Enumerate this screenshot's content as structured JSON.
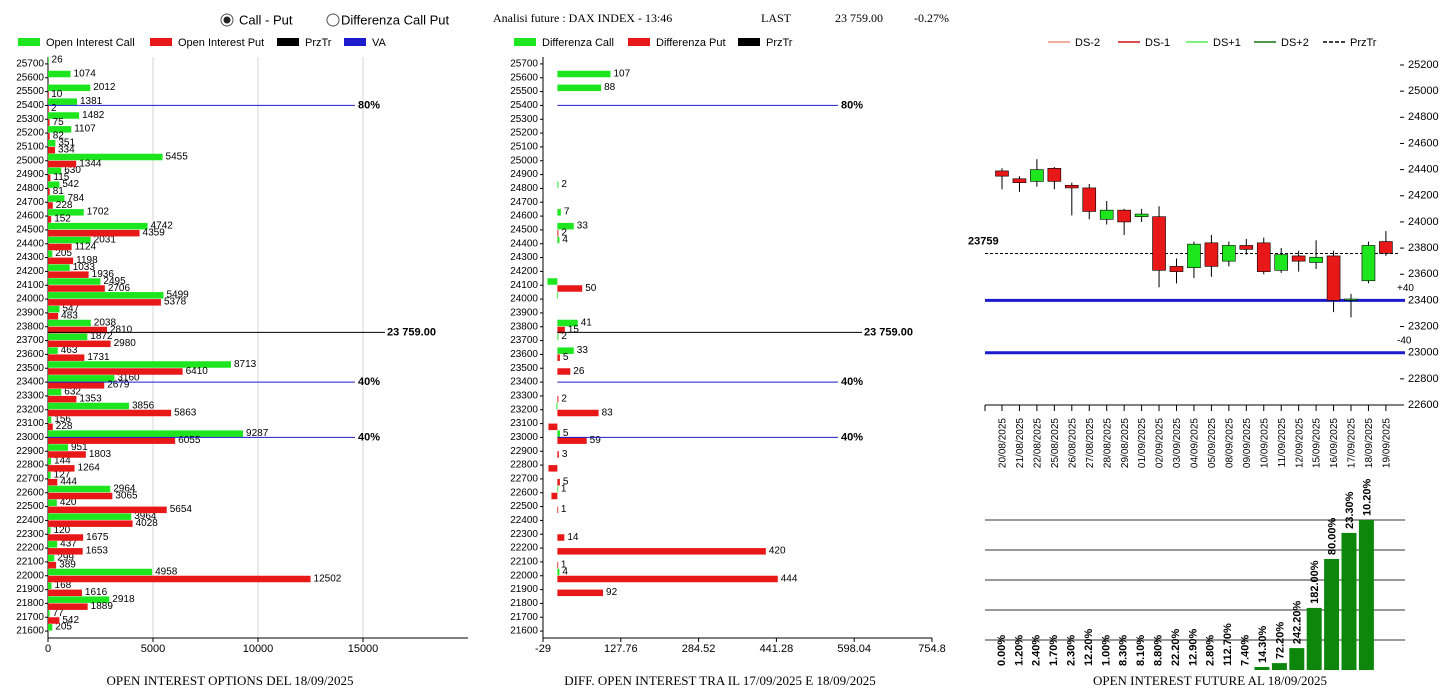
{
  "header": {
    "options": [
      "Call - Put",
      "Differenza Call Put"
    ],
    "selected": 0,
    "title": "Analisi future : DAX INDEX - 13:46",
    "last_label": "LAST",
    "last_value": "23 759.00",
    "change": "-0.27%"
  },
  "chart_data": [
    {
      "type": "hbar",
      "title": "OPEN INTEREST OPTIONS DEL 18/09/2025",
      "categories": [
        25700,
        25600,
        25500,
        25400,
        25300,
        25200,
        25100,
        25000,
        24900,
        24800,
        24700,
        24600,
        24500,
        24400,
        24300,
        24200,
        24100,
        24000,
        23900,
        23800,
        23700,
        23600,
        23500,
        23400,
        23300,
        23200,
        23100,
        23000,
        22900,
        22800,
        22700,
        22600,
        22500,
        22400,
        22300,
        22200,
        22100,
        22000,
        21900,
        21800,
        21700,
        21600
      ],
      "ylim": [
        21550,
        25750
      ],
      "xlim": [
        0,
        20000
      ],
      "xticks": [
        0,
        5000,
        10000,
        15000
      ],
      "grid": true,
      "series": [
        {
          "name": "Open Interest Call",
          "color": "#1ee61e",
          "values": [
            26,
            1074,
            2012,
            1381,
            1482,
            1107,
            351,
            5455,
            630,
            542,
            784,
            1702,
            4742,
            2031,
            205,
            1033,
            2495,
            5499,
            547,
            2038,
            1872,
            463,
            8713,
            3160,
            632,
            3856,
            156,
            9287,
            951,
            144,
            127,
            2964,
            420,
            3964,
            120,
            437,
            299,
            4958,
            168,
            2918,
            77,
            205
          ]
        },
        {
          "name": "Open Interest Put",
          "color": "#e81818",
          "values": [
            null,
            null,
            10,
            2,
            75,
            82,
            334,
            1344,
            115,
            81,
            228,
            152,
            4359,
            1124,
            1198,
            1936,
            2706,
            5378,
            483,
            2810,
            2980,
            1731,
            6410,
            2679,
            1353,
            5863,
            228,
            6055,
            1803,
            1264,
            444,
            3065,
            5654,
            4028,
            1675,
            1653,
            389,
            12502,
            1616,
            1889,
            542,
            null
          ]
        }
      ],
      "przTr": {
        "name": "PrzTr",
        "color": "#000000",
        "value": 23759,
        "label": "23 759.00"
      },
      "va": {
        "name": "VA",
        "color": "#1c1ccc",
        "levels": [
          {
            "value": 25400,
            "label": "80%"
          },
          {
            "value": 23400,
            "label": "40%"
          },
          {
            "value": 23000,
            "label": "40%"
          }
        ]
      }
    },
    {
      "type": "hbar",
      "title": "DIFF. OPEN INTEREST TRA IL 17/09/2025 E 18/09/2025",
      "categories": [
        25700,
        25600,
        25500,
        25400,
        25300,
        25200,
        25100,
        25000,
        24900,
        24800,
        24700,
        24600,
        24500,
        24400,
        24300,
        24200,
        24100,
        24000,
        23900,
        23800,
        23700,
        23600,
        23500,
        23400,
        23300,
        23200,
        23100,
        23000,
        22900,
        22800,
        22700,
        22600,
        22500,
        22400,
        22300,
        22200,
        22100,
        22000,
        21900,
        21800,
        21700,
        21600
      ],
      "ylim": [
        21550,
        25750
      ],
      "xlim": [
        -29,
        754.8
      ],
      "xticks": [
        -29,
        127.76,
        284.52,
        441.28,
        598.04,
        754.8
      ],
      "grid": false,
      "negative_labels": false,
      "series": [
        {
          "name": "Differenza Call",
          "color": "#1ee61e",
          "values": [
            null,
            107,
            88,
            null,
            null,
            null,
            null,
            null,
            null,
            2,
            null,
            7,
            33,
            4,
            null,
            null,
            -20,
            -1,
            null,
            41,
            2,
            33,
            null,
            null,
            null,
            -2,
            null,
            5,
            null,
            null,
            null,
            1,
            null,
            null,
            null,
            null,
            null,
            4,
            null,
            null,
            null,
            null
          ]
        },
        {
          "name": "Differenza Put",
          "color": "#e81818",
          "values": [
            null,
            null,
            null,
            null,
            null,
            null,
            null,
            null,
            null,
            null,
            null,
            null,
            2,
            null,
            null,
            null,
            50,
            null,
            null,
            15,
            null,
            5,
            26,
            null,
            2,
            83,
            -18,
            59,
            3,
            -18,
            5,
            -12,
            1,
            null,
            14,
            420,
            1,
            444,
            92,
            null,
            null,
            null
          ]
        }
      ],
      "przTr": {
        "name": "PrzTr",
        "color": "#000000",
        "value": 23759,
        "label": "23 759.00"
      },
      "va": {
        "color": "#1c1ccc",
        "levels": [
          {
            "value": 25400,
            "label": "80%"
          },
          {
            "value": 23400,
            "label": "40%"
          },
          {
            "value": 23000,
            "label": "40%"
          }
        ]
      }
    },
    {
      "type": "candlestick",
      "x": [
        "20/08/2025",
        "21/08/2025",
        "22/08/2025",
        "25/08/2025",
        "26/08/2025",
        "27/08/2025",
        "28/08/2025",
        "29/08/2025",
        "01/09/2025",
        "02/09/2025",
        "03/09/2025",
        "04/09/2025",
        "05/09/2025",
        "08/09/2025",
        "09/09/2025",
        "10/09/2025",
        "11/09/2025",
        "12/09/2025",
        "15/09/2025",
        "16/09/2025",
        "17/09/2025",
        "18/09/2025",
        "19/09/2025"
      ],
      "open": [
        24390,
        24330,
        24310,
        24410,
        24280,
        24260,
        24020,
        24090,
        24040,
        24040,
        23660,
        23650,
        23840,
        23700,
        23820,
        23840,
        23630,
        23740,
        23690,
        23740,
        23400,
        23550,
        23850
      ],
      "high": [
        24410,
        24350,
        24480,
        24420,
        24300,
        24290,
        24160,
        24100,
        24100,
        24120,
        23720,
        23850,
        23900,
        23850,
        23870,
        23880,
        23800,
        23780,
        23860,
        23780,
        23450,
        23850,
        23930
      ],
      "low": [
        24250,
        24230,
        24270,
        24250,
        24050,
        24020,
        23980,
        23900,
        24000,
        23500,
        23530,
        23570,
        23580,
        23660,
        23750,
        23600,
        23610,
        23620,
        23640,
        23310,
        23270,
        23530,
        23740
      ],
      "close": [
        24350,
        24300,
        24400,
        24310,
        24260,
        24080,
        24090,
        24000,
        24060,
        23630,
        23620,
        23830,
        23660,
        23820,
        23790,
        23620,
        23750,
        23700,
        23730,
        23400,
        23410,
        23820,
        23760
      ],
      "up_color": "#1ee61e",
      "down_color": "#e81818",
      "ylim": [
        22600,
        25200
      ],
      "yticks": [
        22600,
        22800,
        23000,
        23200,
        23400,
        23600,
        23800,
        24000,
        24200,
        24400,
        24600,
        24800,
        25000,
        25200
      ],
      "series": [
        {
          "name": "DS-2",
          "color": "#e8967a"
        },
        {
          "name": "DS-1",
          "color": "#d01010"
        },
        {
          "name": "DS+1",
          "color": "#55ee55"
        },
        {
          "name": "DS+2",
          "color": "#117711"
        },
        {
          "name": "PrzTr",
          "color": "#000000",
          "dash": true
        }
      ],
      "przTr": {
        "value": 23759,
        "label": "23759",
        "color": "#000000"
      },
      "levels": {
        "color": "#1c1ccc",
        "lines": [
          {
            "value": 23400,
            "label": "+40"
          },
          {
            "value": 23000,
            "label": "-40"
          }
        ]
      }
    },
    {
      "type": "bar",
      "title": "OPEN INTEREST FUTURE AL 18/09/2025",
      "values": [
        0,
        0,
        0,
        0,
        0,
        0,
        0,
        0,
        0,
        0,
        0,
        0,
        0,
        0,
        0,
        0.1,
        0.23,
        0.73,
        2.07,
        3.7,
        4.57,
        5.0
      ],
      "bar_labels": [
        "0.00%",
        "1.20%",
        "2.40%",
        "1.70%",
        "2.30%",
        "12.20%",
        "1.00%",
        "8.30%",
        "8.10%",
        "8.80%",
        "22.20%",
        "12.90%",
        "2.80%",
        "112.70%",
        "7.40%",
        "14.30%",
        "72.20%",
        "242.20%",
        "182.00%",
        "80.00%",
        "23.30%",
        "10.20%"
      ],
      "color": "#0c870c",
      "ylim": [
        0,
        5
      ],
      "grid_lines": [
        1,
        2,
        3,
        4,
        5
      ]
    }
  ]
}
